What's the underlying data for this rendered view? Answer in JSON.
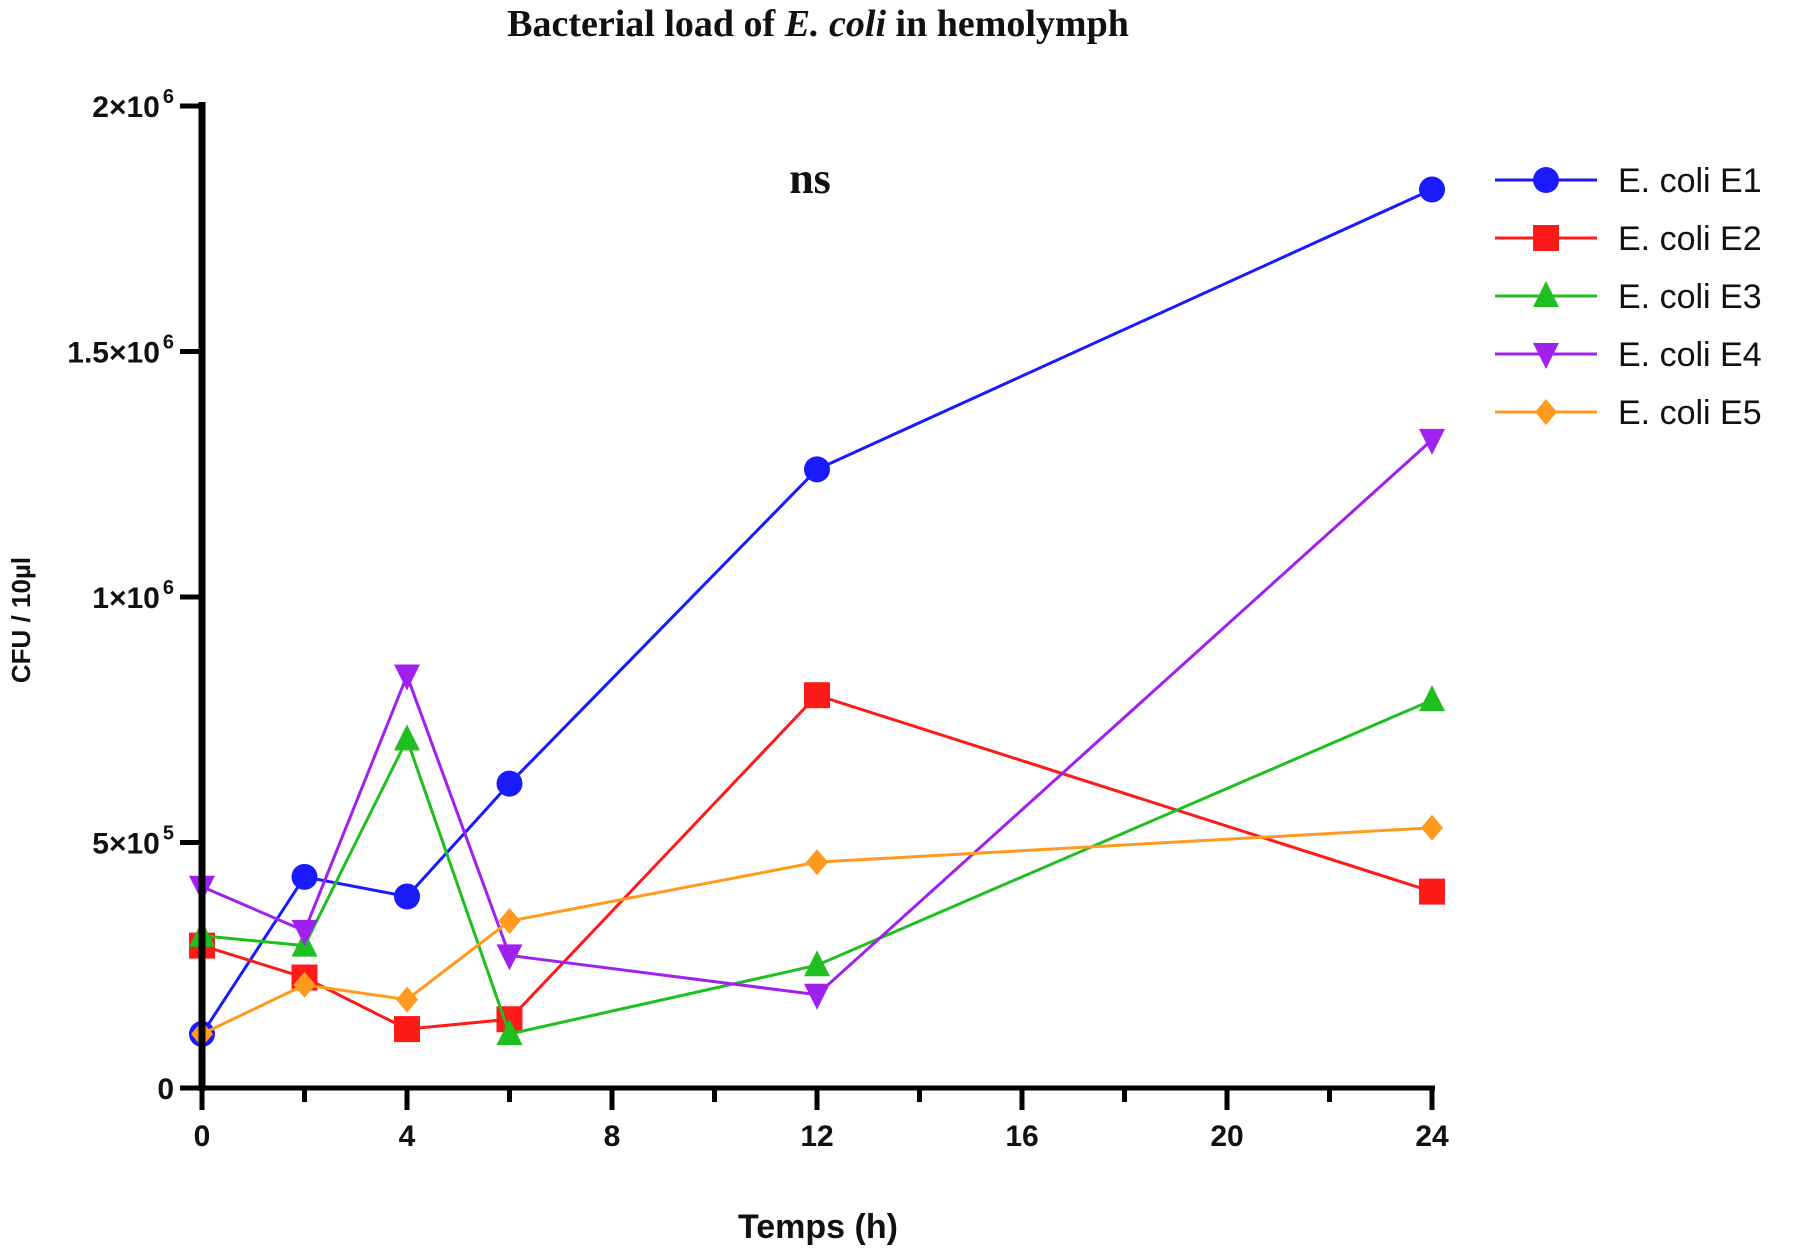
{
  "chart_data": {
    "type": "line",
    "title": {
      "before": "Bacterial load of ",
      "italic": "E. coli",
      "after": " in hemolymph"
    },
    "annotation": "ns",
    "xlabel": "Temps (h)",
    "ylabel": "CFU / 10µl",
    "x": [
      0,
      2,
      4,
      6,
      12,
      24
    ],
    "xlim": [
      0,
      24
    ],
    "x_ticks": [
      {
        "value": 0,
        "label": "0"
      },
      {
        "value": 4,
        "label": "4"
      },
      {
        "value": 8,
        "label": "8"
      },
      {
        "value": 12,
        "label": "12"
      },
      {
        "value": 16,
        "label": "16"
      },
      {
        "value": 20,
        "label": "20"
      },
      {
        "value": 24,
        "label": "24"
      }
    ],
    "x_minor_ticks": [
      2,
      6,
      10,
      14,
      18,
      22
    ],
    "ylim": [
      0,
      2000000
    ],
    "y_ticks": [
      {
        "value": 0,
        "mantissa": "0",
        "exp": ""
      },
      {
        "value": 500000,
        "mantissa": "5×10",
        "exp": "5"
      },
      {
        "value": 1000000,
        "mantissa": "1×10",
        "exp": "6"
      },
      {
        "value": 1500000,
        "mantissa": "1.5×10",
        "exp": "6"
      },
      {
        "value": 2000000,
        "mantissa": "2×10",
        "exp": "6"
      }
    ],
    "grid": false,
    "legend_position": "right",
    "series": [
      {
        "name": "E. coli E1",
        "color": "#1a1aff",
        "marker": "circle",
        "values": [
          110000,
          430000,
          390000,
          620000,
          1260000,
          1830000
        ]
      },
      {
        "name": "E. coli E2",
        "color": "#ff1a1a",
        "marker": "square",
        "values": [
          290000,
          225000,
          120000,
          140000,
          800000,
          400000
        ]
      },
      {
        "name": "E. coli E3",
        "color": "#1fbf1f",
        "marker": "triangle-up",
        "values": [
          310000,
          290000,
          710000,
          110000,
          250000,
          790000
        ]
      },
      {
        "name": "E. coli E4",
        "color": "#a020f0",
        "marker": "triangle-down",
        "values": [
          410000,
          320000,
          840000,
          270000,
          190000,
          1320000
        ]
      },
      {
        "name": "E. coli E5",
        "color": "#ff9a1f",
        "marker": "diamond",
        "values": [
          110000,
          210000,
          180000,
          340000,
          460000,
          530000
        ]
      }
    ]
  }
}
